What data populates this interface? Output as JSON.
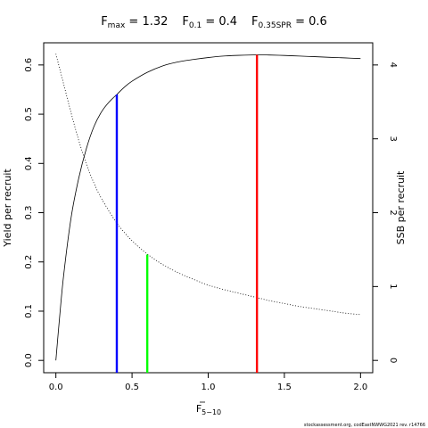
{
  "chart_data": {
    "type": "line",
    "title": {
      "parts": [
        {
          "main": "F",
          "sub": "max",
          "rest": " = 1.32"
        },
        {
          "main": "F",
          "sub": "0.1",
          "rest": " = 0.4"
        },
        {
          "main": "F",
          "sub": "0.35SPR",
          "rest": " = 0.6"
        }
      ]
    },
    "xlabel": {
      "main": "F",
      "sub": "5−10"
    },
    "ylabel": "Yield per recruit",
    "y2label": "SSB per recruit",
    "xlim": [
      -0.08,
      2.08
    ],
    "ylim": [
      -0.025,
      0.645
    ],
    "y2lim": [
      -0.1667,
      4.3
    ],
    "xticks": [
      0,
      0.5,
      1,
      1.5,
      2
    ],
    "xtick_labels": [
      "0.0",
      "0.5",
      "1.0",
      "1.5",
      "2.0"
    ],
    "yticks": [
      0,
      0.1,
      0.2,
      0.3,
      0.4,
      0.5,
      0.6
    ],
    "ytick_labels": [
      "0.0",
      "0.1",
      "0.2",
      "0.3",
      "0.4",
      "0.5",
      "0.6"
    ],
    "y2ticks": [
      0,
      1,
      2,
      3,
      4
    ],
    "y2tick_labels": [
      "0",
      "1",
      "2",
      "3",
      "4"
    ],
    "grid": false,
    "series": [
      {
        "id": "ypr",
        "axis": "left",
        "style": "solid",
        "color": "#000000",
        "x": [
          0,
          0.02,
          0.05,
          0.1,
          0.15,
          0.2,
          0.25,
          0.3,
          0.35,
          0.4,
          0.45,
          0.5,
          0.6,
          0.7,
          0.8,
          0.9,
          1.0,
          1.1,
          1.2,
          1.32,
          1.4,
          1.5,
          1.6,
          1.7,
          1.8,
          1.9,
          2.0
        ],
        "y": [
          0,
          0.072,
          0.17,
          0.29,
          0.37,
          0.43,
          0.475,
          0.505,
          0.525,
          0.54,
          0.555,
          0.567,
          0.585,
          0.598,
          0.606,
          0.611,
          0.615,
          0.618,
          0.6195,
          0.6205,
          0.6202,
          0.6193,
          0.618,
          0.6168,
          0.6155,
          0.6143,
          0.613
        ]
      },
      {
        "id": "spr",
        "axis": "right",
        "style": "dotted",
        "color": "#000000",
        "x": [
          0,
          0.05,
          0.1,
          0.15,
          0.2,
          0.25,
          0.3,
          0.4,
          0.5,
          0.6,
          0.7,
          0.8,
          0.9,
          1.0,
          1.1,
          1.2,
          1.32,
          1.4,
          1.5,
          1.6,
          1.7,
          1.8,
          1.9,
          2.0
        ],
        "y": [
          4.15,
          3.75,
          3.35,
          2.98,
          2.66,
          2.4,
          2.19,
          1.86,
          1.62,
          1.44,
          1.3,
          1.19,
          1.1,
          1.02,
          0.96,
          0.91,
          0.85,
          0.81,
          0.77,
          0.73,
          0.7,
          0.67,
          0.64,
          0.62
        ]
      }
    ],
    "reference_lines": [
      {
        "id": "f01",
        "label": "F0.1",
        "x": 0.4,
        "y_top": 0.54,
        "axis": "left",
        "color": "#0000ff"
      },
      {
        "id": "fspr",
        "label": "F0.35SPR",
        "x": 0.6,
        "y_top": 0.215,
        "axis": "left",
        "color": "#00ff00"
      },
      {
        "id": "fmax",
        "label": "Fmax",
        "x": 1.32,
        "y_top": 0.6205,
        "axis": "left",
        "color": "#ff0000"
      }
    ],
    "footer": "stockassessment.org, codEastNWWG2021  rev. r14766"
  }
}
